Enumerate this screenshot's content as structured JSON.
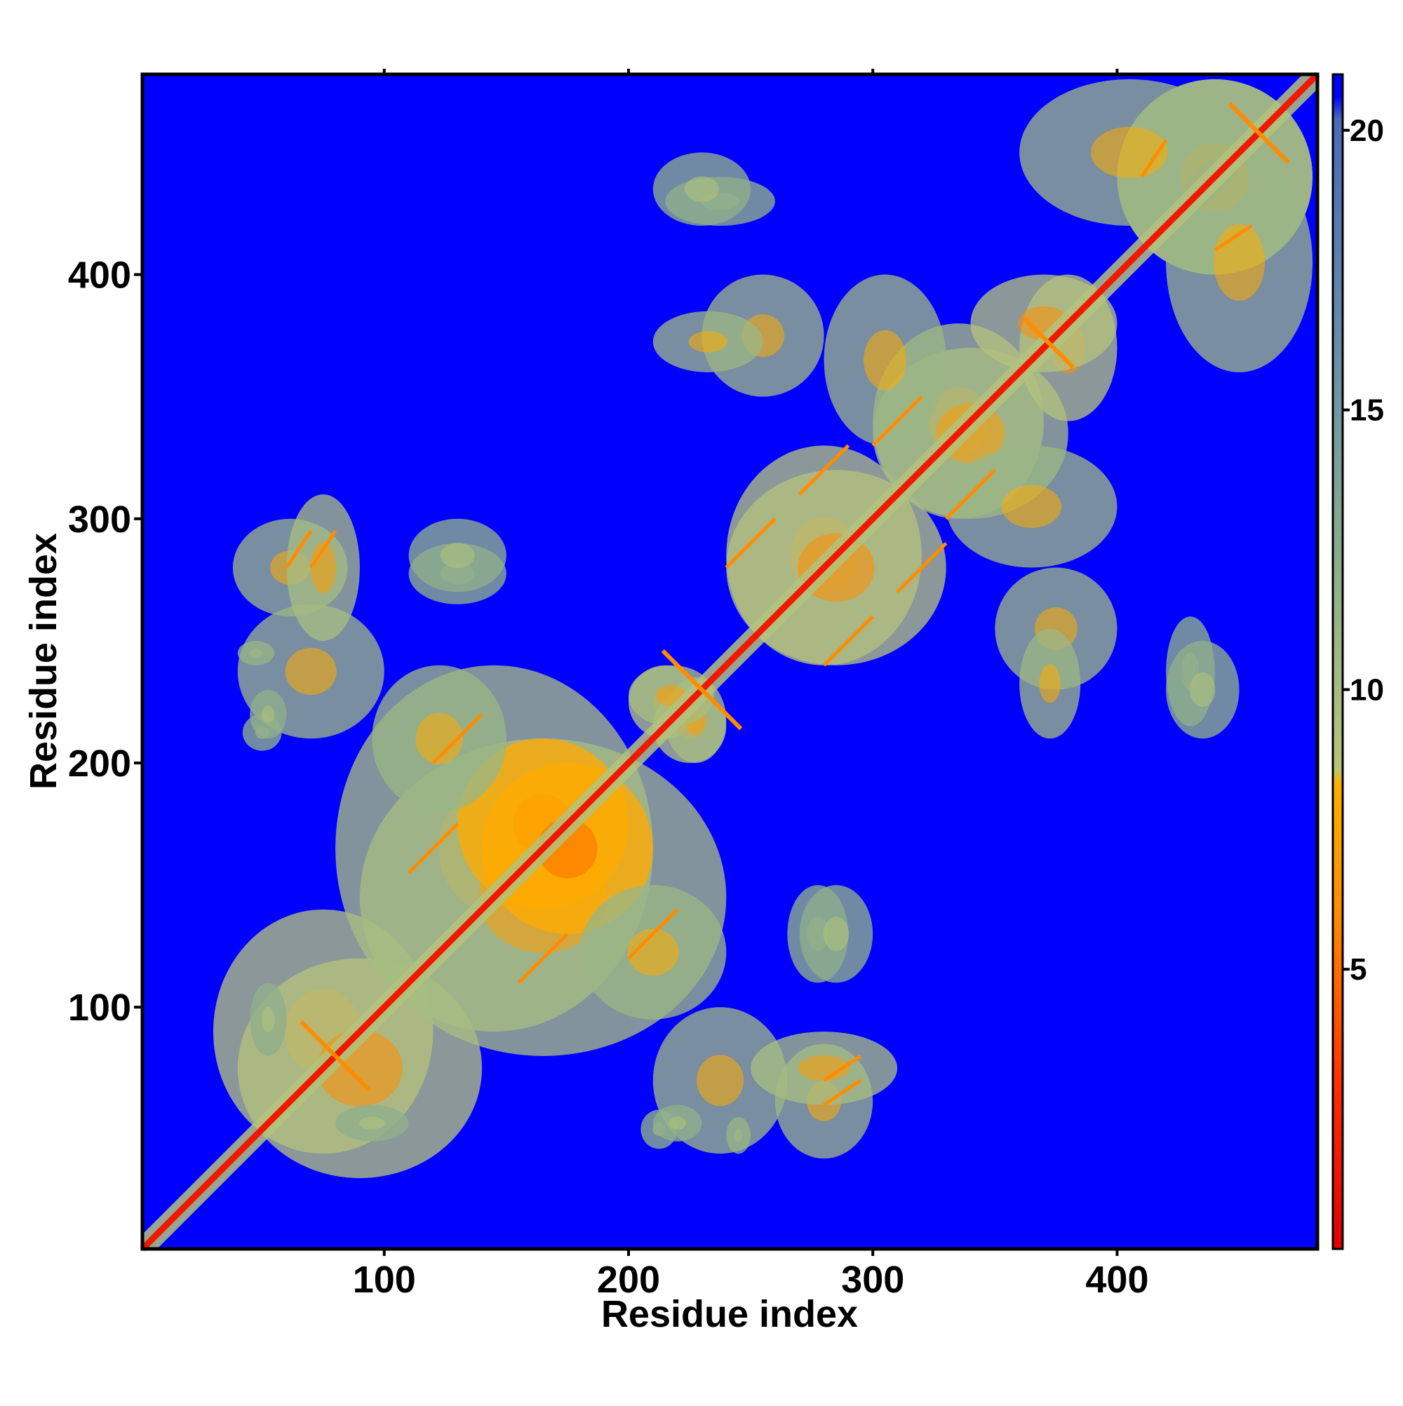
{
  "chart_data": {
    "type": "heatmap",
    "title": "",
    "xlabel": "Residue index",
    "ylabel": "Residue index",
    "xlim": [
      1,
      482
    ],
    "ylim": [
      1,
      482
    ],
    "x_ticks": [
      100,
      200,
      300,
      400
    ],
    "y_ticks": [
      100,
      200,
      300,
      400
    ],
    "x_tick_labels": [
      "100",
      "200",
      "300",
      "400"
    ],
    "y_tick_labels": [
      "100",
      "200",
      "300",
      "400"
    ],
    "grid": false,
    "symmetric": true,
    "colorbar": {
      "min": 0,
      "max": 21,
      "ticks": [
        5,
        10,
        15,
        20
      ],
      "tick_labels": [
        "5",
        "10",
        "15",
        "20"
      ],
      "stops": [
        {
          "value": 0,
          "color": "#e00000"
        },
        {
          "value": 3,
          "color": "#ff3000"
        },
        {
          "value": 6,
          "color": "#ff8c00"
        },
        {
          "value": 8.3,
          "color": "#ffb000"
        },
        {
          "value": 8.6,
          "color": "#b8c47a"
        },
        {
          "value": 12,
          "color": "#8fb08a"
        },
        {
          "value": 16,
          "color": "#6a8fa8"
        },
        {
          "value": 20.2,
          "color": "#4a6ab8"
        },
        {
          "value": 20.6,
          "color": "#0000ff"
        },
        {
          "value": 21,
          "color": "#0000ff"
        }
      ]
    },
    "background_color": "#0000ff",
    "diagonal": {
      "value": 1.5,
      "halfwidth": 6
    },
    "contact_regions": [
      {
        "x": [
          30,
          120
        ],
        "y": [
          40,
          140
        ],
        "value": 9
      },
      {
        "x": [
          80,
          210
        ],
        "y": [
          90,
          240
        ],
        "value": 10
      },
      {
        "x": [
          130,
          200
        ],
        "y": [
          140,
          210
        ],
        "value": 8
      },
      {
        "x": [
          200,
          230
        ],
        "y": [
          210,
          240
        ],
        "value": 9
      },
      {
        "x": [
          240,
          320
        ],
        "y": [
          240,
          330
        ],
        "value": 9
      },
      {
        "x": [
          300,
          370
        ],
        "y": [
          300,
          380
        ],
        "value": 10
      },
      {
        "x": [
          360,
          400
        ],
        "y": [
          340,
          400
        ],
        "value": 9
      },
      {
        "x": [
          400,
          480
        ],
        "y": [
          400,
          480
        ],
        "value": 10
      },
      {
        "x": [
          38,
          85
        ],
        "y": [
          260,
          300
        ],
        "value": 11
      },
      {
        "x": [
          40,
          55
        ],
        "y": [
          240,
          250
        ],
        "value": 12
      },
      {
        "x": [
          42,
          58
        ],
        "y": [
          205,
          220
        ],
        "value": 12
      },
      {
        "x": [
          110,
          150
        ],
        "y": [
          265,
          290
        ],
        "value": 12
      },
      {
        "x": [
          215,
          240
        ],
        "y": [
          200,
          235
        ],
        "value": 10
      },
      {
        "x": [
          230,
          280
        ],
        "y": [
          350,
          400
        ],
        "value": 11
      },
      {
        "x": [
          215,
          260
        ],
        "y": [
          420,
          440
        ],
        "value": 12
      },
      {
        "x": [
          360,
          450
        ],
        "y": [
          420,
          480
        ],
        "value": 11
      },
      {
        "x": [
          330,
          400
        ],
        "y": [
          280,
          330
        ],
        "value": 11
      },
      {
        "x": [
          360,
          385
        ],
        "y": [
          210,
          255
        ],
        "value": 11
      },
      {
        "x": [
          420,
          450
        ],
        "y": [
          210,
          250
        ],
        "value": 12
      },
      {
        "x": [
          210,
          265
        ],
        "y": [
          40,
          100
        ],
        "value": 11
      },
      {
        "x": [
          250,
          310
        ],
        "y": [
          60,
          90
        ],
        "value": 10
      },
      {
        "x": [
          180,
          240
        ],
        "y": [
          95,
          150
        ],
        "value": 11
      },
      {
        "x": [
          270,
          300
        ],
        "y": [
          110,
          150
        ],
        "value": 12
      },
      {
        "x": [
          80,
          110
        ],
        "y": [
          45,
          60
        ],
        "value": 12
      },
      {
        "x": [
          210,
          230
        ],
        "y": [
          45,
          60
        ],
        "value": 12
      }
    ],
    "helix_contacts": [
      {
        "x": 80,
        "y": 80,
        "len": 14
      },
      {
        "x": 230,
        "y": 230,
        "len": 16
      },
      {
        "x": 372,
        "y": 372,
        "len": 10
      },
      {
        "x": 458,
        "y": 458,
        "len": 12
      }
    ],
    "strand_contacts": [
      {
        "x0": 155,
        "y0": 110,
        "x1": 175,
        "y1": 130
      },
      {
        "x0": 200,
        "y0": 120,
        "x1": 220,
        "y1": 140
      },
      {
        "x0": 280,
        "y0": 240,
        "x1": 300,
        "y1": 260
      },
      {
        "x0": 310,
        "y0": 270,
        "x1": 330,
        "y1": 290
      },
      {
        "x0": 330,
        "y0": 300,
        "x1": 350,
        "y1": 320
      },
      {
        "x0": 60,
        "y0": 280,
        "x1": 70,
        "y1": 295
      },
      {
        "x0": 280,
        "y0": 70,
        "x1": 295,
        "y1": 80
      },
      {
        "x0": 410,
        "y0": 440,
        "x1": 420,
        "y1": 455
      }
    ]
  }
}
